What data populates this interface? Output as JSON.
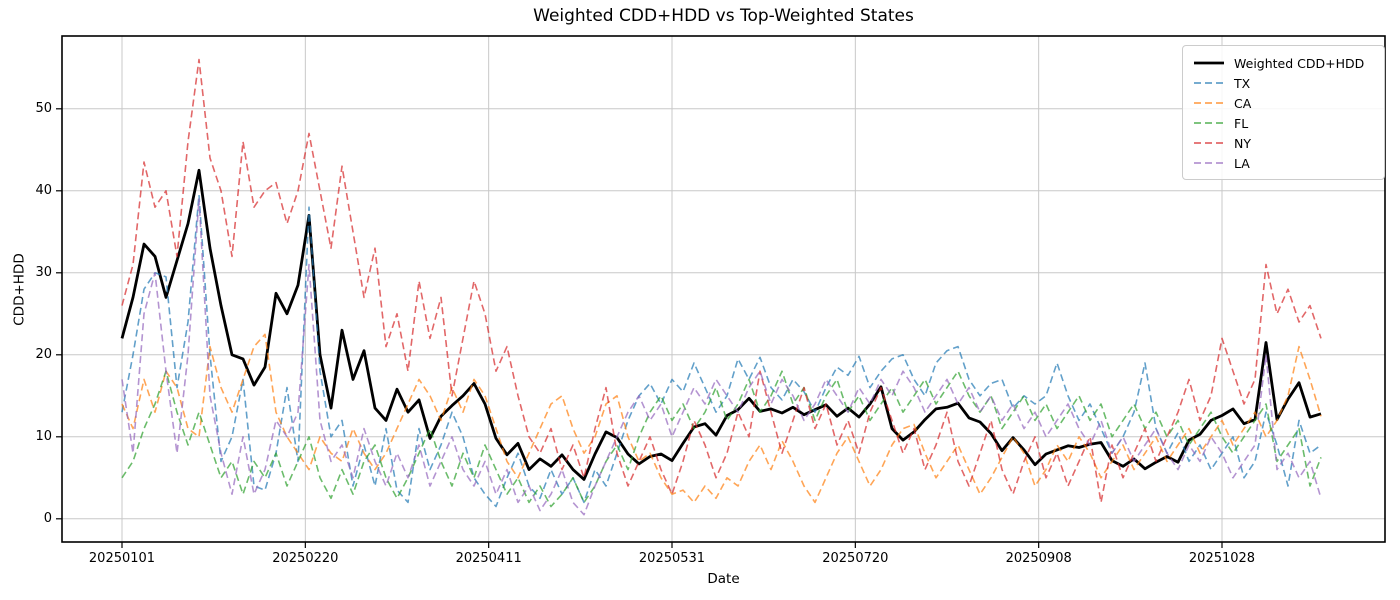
{
  "figure": {
    "title": "Weighted CDD+HDD vs Top-Weighted States",
    "xlabel": "Date",
    "ylabel": "CDD+HDD",
    "background_color": "#ffffff",
    "grid_color": "#c8c8c8",
    "spine_color": "#000000"
  },
  "chart_data": {
    "type": "line",
    "title": "Weighted CDD+HDD vs Top-Weighted States",
    "xlabel": "Date",
    "ylabel": "CDD+HDD",
    "grid": true,
    "legend_position": "upper right",
    "start_date": "20250101",
    "sample_step_days": 3,
    "x_tick_days": [
      0,
      50,
      100,
      150,
      200,
      250,
      300
    ],
    "x_tick_labels": [
      "20250101",
      "20250220",
      "20250411",
      "20250531",
      "20250720",
      "20250908",
      "20251028"
    ],
    "y_ticks": [
      0,
      10,
      20,
      30,
      40,
      50
    ],
    "y_tick_labels": [
      "0",
      "10",
      "20",
      "30",
      "40",
      "50"
    ],
    "ylim": [
      -2.8,
      58.9
    ],
    "xlim_days": [
      -16.4,
      344.5
    ],
    "series": [
      {
        "name": "Weighted CDD+HDD",
        "color": "#000000",
        "style": "solid",
        "alpha": 1,
        "width": 2.8,
        "values": [
          22,
          27,
          33.5,
          32,
          27,
          31.5,
          36,
          42.5,
          33,
          26,
          20,
          19.5,
          16.3,
          18.5,
          27.5,
          25,
          28.5,
          37,
          20,
          13.5,
          23,
          17,
          20.5,
          13.5,
          12,
          15.8,
          13,
          14.5,
          9.8,
          12.5,
          13.8,
          15,
          16.5,
          14,
          9.8,
          7.8,
          9.2,
          6,
          7.3,
          6.4,
          7.8,
          6,
          4.8,
          7.9,
          10.6,
          9.9,
          7.9,
          6.7,
          7.6,
          7.9,
          7.1,
          9.2,
          11.2,
          11.6,
          10.2,
          12.6,
          13.3,
          14.7,
          13.1,
          13.4,
          12.9,
          13.6,
          12.7,
          13.3,
          13.9,
          12.5,
          13.5,
          12.4,
          14,
          16.1,
          11,
          9.6,
          10.6,
          12.1,
          13.4,
          13.6,
          14.1,
          12.3,
          11.8,
          10.4,
          8.3,
          9.9,
          8.4,
          6.6,
          7.9,
          8.4,
          8.9,
          8.7,
          9.1,
          9.3,
          7.1,
          6.4,
          7.3,
          6.1,
          6.9,
          7.6,
          6.9,
          9.6,
          10.3,
          12,
          12.6,
          13.4,
          11.6,
          12.1,
          21.5,
          12.1,
          14.6,
          16.6,
          12.4,
          12.8
        ]
      },
      {
        "name": "TX",
        "color": "#1f77b4",
        "style": "dashed",
        "alpha": 0.7,
        "width": 1.6,
        "values": [
          13,
          20,
          28,
          30,
          29.5,
          16,
          24,
          39.5,
          20,
          7,
          10,
          17,
          4,
          3.5,
          8,
          16,
          7,
          38,
          18,
          10,
          12,
          4,
          9,
          4,
          11,
          3.5,
          2,
          11,
          6,
          9,
          13,
          10,
          5,
          3,
          1.5,
          5,
          8,
          4,
          2.5,
          6,
          3,
          5,
          2,
          6,
          4,
          8,
          12,
          15,
          16.5,
          14,
          17,
          15.5,
          19,
          16,
          13,
          15,
          19.5,
          17,
          19.7,
          16,
          14.5,
          17,
          15.5,
          13,
          16,
          18.5,
          17.5,
          19.8,
          16,
          18,
          19.5,
          20,
          17,
          15,
          19,
          20.5,
          21,
          17,
          15,
          16.5,
          17,
          13.5,
          15,
          14,
          15,
          19,
          15,
          12,
          14,
          11,
          8,
          10,
          13,
          19,
          11,
          8,
          10.5,
          7,
          9,
          6,
          8,
          10,
          5,
          7,
          13,
          9,
          4,
          12,
          8,
          9
        ]
      },
      {
        "name": "CA",
        "color": "#ff7f0e",
        "style": "dashed",
        "alpha": 0.7,
        "width": 1.6,
        "values": [
          14,
          11,
          17,
          13,
          18,
          16,
          11,
          10,
          21,
          16,
          13,
          17,
          21,
          22.5,
          13,
          10,
          8,
          6,
          10,
          8,
          7,
          11,
          8,
          6,
          8,
          11,
          14,
          17,
          15,
          12,
          16,
          13,
          17,
          15,
          11,
          7,
          5,
          8,
          11,
          14,
          15,
          11,
          8,
          10,
          14,
          15,
          10,
          7,
          8,
          5,
          3,
          3.5,
          2,
          4,
          2.5,
          5,
          4,
          7,
          9,
          6,
          9.5,
          7,
          4,
          2,
          5,
          8,
          10,
          7,
          4,
          6,
          9,
          11,
          11.5,
          8,
          5,
          7,
          9,
          6,
          3,
          5,
          7.5,
          10,
          8,
          4,
          6,
          9,
          7,
          10,
          8,
          5,
          7,
          9,
          6,
          8,
          10,
          7,
          9,
          11,
          8,
          10,
          12,
          9,
          11,
          13,
          10,
          12,
          15,
          21,
          17,
          12.5
        ]
      },
      {
        "name": "FL",
        "color": "#2ca02c",
        "style": "dashed",
        "alpha": 0.7,
        "width": 1.6,
        "values": [
          5,
          7,
          11,
          14,
          18,
          13,
          9,
          13,
          9,
          5,
          7,
          3,
          7,
          5,
          8,
          4,
          7,
          10,
          5,
          2.5,
          6,
          3,
          7,
          9,
          5,
          2.5,
          5,
          8,
          11,
          7,
          4,
          8,
          5,
          9,
          6,
          3,
          5,
          2,
          4,
          1.5,
          3,
          5,
          2,
          4,
          7,
          9,
          6,
          10,
          13,
          15,
          12,
          14,
          11,
          13,
          16,
          12,
          14,
          17,
          13,
          15,
          18,
          14,
          16,
          12,
          15,
          17,
          13,
          15,
          12,
          14,
          16,
          13,
          15,
          17,
          14,
          16,
          18,
          15,
          13,
          15,
          11,
          13,
          15,
          12,
          14,
          11,
          13,
          15,
          12,
          14,
          10,
          12,
          14,
          11,
          13,
          10,
          12,
          9,
          11,
          13,
          10,
          8,
          10,
          12,
          14,
          7,
          9,
          11,
          4,
          7.5
        ]
      },
      {
        "name": "NY",
        "color": "#d62728",
        "style": "dashed",
        "alpha": 0.7,
        "width": 1.6,
        "values": [
          26,
          31,
          43.5,
          38,
          40,
          32,
          46,
          56,
          44,
          40,
          32,
          46,
          38,
          40,
          41,
          36,
          40,
          47,
          40,
          33,
          43,
          35,
          27,
          33,
          21,
          25,
          18,
          29,
          22,
          27,
          15,
          22,
          29,
          25,
          18,
          21,
          15,
          10,
          8,
          11,
          6,
          9,
          5,
          11,
          16,
          8,
          4,
          7,
          10,
          6,
          3,
          7,
          12,
          9,
          5,
          8,
          13,
          10,
          18,
          13,
          8,
          12,
          16,
          11,
          14,
          9,
          12,
          8,
          13,
          16,
          12,
          8,
          11,
          6,
          9,
          13,
          7,
          4,
          8,
          12,
          6,
          3,
          7,
          10,
          5,
          8,
          4,
          7,
          10,
          2,
          9,
          5,
          8,
          11,
          7,
          10,
          13,
          17,
          12,
          15,
          22,
          18,
          14,
          17,
          31,
          25,
          28,
          24,
          26,
          22
        ]
      },
      {
        "name": "LA",
        "color": "#9467bd",
        "style": "dashed",
        "alpha": 0.7,
        "width": 1.6,
        "values": [
          17,
          8,
          25,
          30,
          18,
          8,
          20,
          39,
          15,
          8,
          3,
          10,
          3,
          6,
          12,
          10,
          13,
          31,
          12,
          7,
          9,
          5,
          11,
          7,
          4,
          8,
          5,
          9,
          4,
          7,
          10,
          6,
          4,
          7,
          3,
          6,
          2,
          4,
          1,
          3,
          6,
          2,
          0.5,
          4,
          7,
          10,
          13,
          15,
          12,
          14,
          10,
          13,
          16,
          14,
          17,
          15,
          13,
          16,
          18,
          14,
          17,
          15,
          12,
          14,
          17,
          15,
          13,
          16,
          14,
          17,
          15,
          18,
          16,
          13,
          15,
          17,
          14,
          16,
          13,
          15,
          12,
          14,
          11,
          13,
          10,
          12,
          14,
          11,
          9,
          12,
          8,
          10,
          7,
          9,
          11,
          8,
          6,
          9,
          7,
          10,
          8,
          5,
          7,
          9,
          20,
          6,
          8,
          5,
          7,
          2.5
        ]
      }
    ]
  }
}
